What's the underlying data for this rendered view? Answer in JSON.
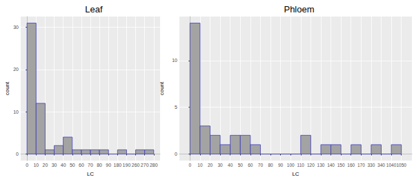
{
  "chart_data": [
    {
      "type": "histogram",
      "title": "Leaf",
      "x_label": "LC",
      "y_label": "count",
      "bins": [
        0,
        10,
        20,
        30,
        40,
        50,
        60,
        70,
        80,
        90,
        180,
        190,
        260,
        270,
        280
      ],
      "values": [
        31,
        12,
        1,
        2,
        4,
        1,
        1,
        1,
        1,
        0,
        1,
        0,
        1,
        1
      ],
      "color": "#a3a3a3",
      "ylim": [
        -1.55,
        32.55
      ],
      "yticks": [
        0,
        10,
        20,
        30
      ],
      "grid": true
    },
    {
      "type": "histogram",
      "title": "Phloem",
      "x_label": "LC",
      "y_label": "count",
      "bins": [
        0,
        10,
        20,
        30,
        40,
        50,
        60,
        70,
        80,
        90,
        100,
        110,
        120,
        130,
        140,
        150,
        160,
        170,
        330,
        340,
        1040,
        1050
      ],
      "values": [
        14,
        3,
        2,
        1,
        2,
        2,
        1,
        0,
        0,
        0,
        0,
        2,
        0,
        1,
        1,
        0,
        1,
        0,
        1,
        0,
        1
      ],
      "color": "#a3a3a3",
      "ylim": [
        -0.7,
        14.7
      ],
      "yticks": [
        0,
        5,
        10
      ],
      "grid": true
    }
  ]
}
